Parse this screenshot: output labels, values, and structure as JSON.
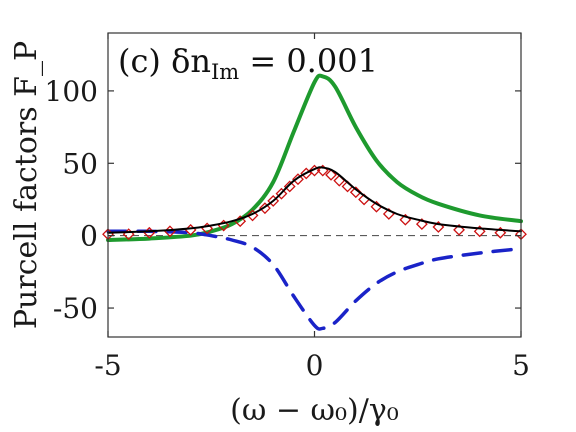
{
  "chart_data": {
    "type": "line",
    "panel_label": "(c) δn_Im = 0.001",
    "xlabel": "(ω − ω₀)/γ₀",
    "ylabel": "Purcell factors F_P",
    "xlim": [
      -5,
      5
    ],
    "ylim": [
      -70,
      140
    ],
    "xticks": [
      "-5",
      "0",
      "5"
    ],
    "yticks": [
      "-50",
      "0",
      "50",
      "100"
    ],
    "grid": false,
    "series": [
      {
        "style": "solid",
        "color": "#1e9a2e",
        "x": [
          -5,
          -4,
          -3,
          -2.5,
          -2,
          -1.5,
          -1,
          -0.5,
          0,
          0.2,
          0.5,
          1,
          1.5,
          2,
          2.5,
          3,
          4,
          5
        ],
        "y": [
          -3,
          -2,
          0,
          3,
          8,
          18,
          37,
          72,
          106,
          110,
          103,
          75,
          52,
          37,
          28,
          22,
          14,
          10
        ]
      },
      {
        "style": "dashed",
        "color": "#1a23c8",
        "x": [
          -5,
          -4,
          -3,
          -2.5,
          -2,
          -1.5,
          -1,
          -0.5,
          0,
          0.2,
          0.5,
          1,
          1.5,
          2,
          2.5,
          3,
          4,
          5
        ],
        "y": [
          3,
          3,
          2,
          0,
          -3,
          -8,
          -20,
          -42,
          -62,
          -64,
          -60,
          -45,
          -33,
          -25,
          -20,
          -16,
          -12,
          -9
        ]
      },
      {
        "style": "solid",
        "color": "#000000",
        "x": [
          -5,
          -4,
          -3,
          -2.5,
          -2,
          -1.5,
          -1,
          -0.5,
          0,
          0.2,
          0.5,
          1,
          1.5,
          2,
          2.5,
          3,
          4,
          5
        ],
        "y": [
          2,
          3,
          5,
          7,
          10,
          15,
          24,
          38,
          46,
          47,
          44,
          32,
          22,
          15,
          11,
          8,
          5,
          3
        ]
      },
      {
        "style": "markers",
        "color": "#cc1111",
        "x": [
          -5,
          -4.5,
          -4,
          -3.5,
          -3,
          -2.6,
          -2.2,
          -1.8,
          -1.5,
          -1.2,
          -1,
          -0.8,
          -0.6,
          -0.4,
          -0.2,
          0,
          0.2,
          0.4,
          0.6,
          0.8,
          1,
          1.2,
          1.5,
          1.8,
          2.2,
          2.6,
          3,
          3.5,
          4,
          4.5,
          5
        ],
        "y": [
          1,
          1,
          2,
          3,
          4,
          5,
          7,
          10,
          14,
          19,
          24,
          29,
          34,
          39,
          43,
          45,
          45,
          42,
          38,
          34,
          30,
          25,
          20,
          15,
          11,
          8,
          6,
          4,
          3,
          2,
          1
        ]
      },
      {
        "style": "reference",
        "color": "#444444",
        "x": [
          -5,
          5
        ],
        "y": [
          0,
          0
        ]
      }
    ]
  }
}
